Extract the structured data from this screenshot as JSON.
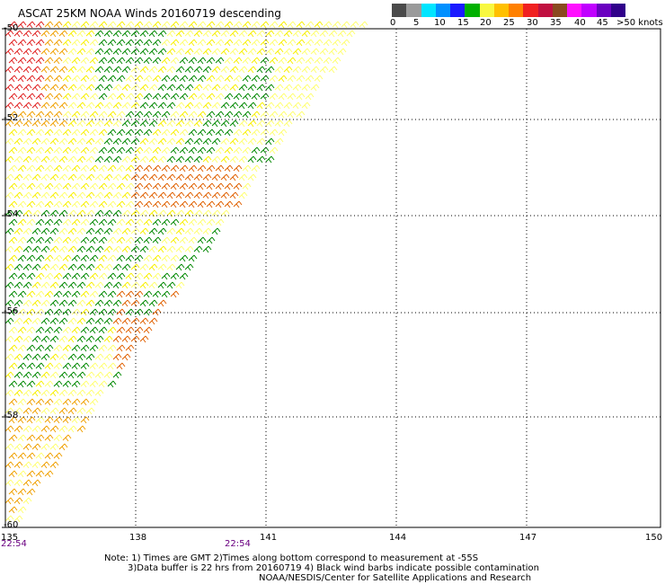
{
  "title": "ASCAT 25KM NOAA Winds 20160719 descending",
  "legend": {
    "labels": [
      "0",
      "5",
      "10",
      "15",
      "20",
      "25",
      "30",
      "35",
      "40",
      "45",
      ">50 knots"
    ],
    "colors": [
      "#4a4a4a",
      "#9a9a9a",
      "#00e5ff",
      "#0090ff",
      "#1a1aff",
      "#00b000",
      "#f8f840",
      "#ffc000",
      "#ff8000",
      "#f02020",
      "#c01040",
      "#8a4a20",
      "#ff10ff",
      "#c000ff",
      "#6a00c0",
      "#30008a"
    ]
  },
  "map": {
    "lat_labels": [
      "-50",
      "-52",
      "-54",
      "-56",
      "-58",
      "-60"
    ],
    "lon_labels": [
      "135",
      "138",
      "141",
      "144",
      "147",
      "150"
    ],
    "times": [
      "22:54",
      "22:54"
    ],
    "barb_colors": {
      "green": "#008800",
      "yellow": "#f8f000",
      "light_yellow": "#ffff70",
      "orange": "#f0a000",
      "dark_orange": "#e06000",
      "red": "#e02020"
    }
  },
  "notes": [
    "Note: 1) Times are GMT 2)Times along bottom correspond to measurement at -55S",
    "3)Data buffer is 22 hrs from 20160719 4) Black wind barbs indicate possible contamination",
    "NOAA/NESDIS/Center for Satellite Applications and Research"
  ]
}
